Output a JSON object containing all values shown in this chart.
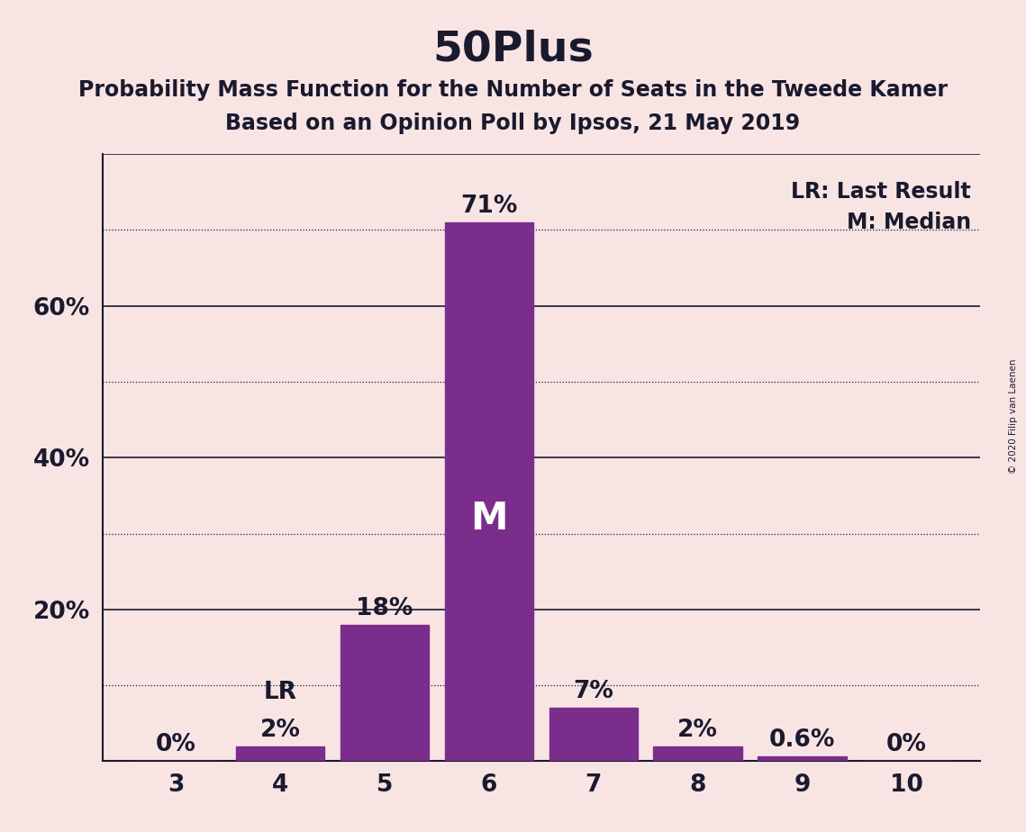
{
  "title": "50Plus",
  "subtitle1": "Probability Mass Function for the Number of Seats in the Tweede Kamer",
  "subtitle2": "Based on an Opinion Poll by Ipsos, 21 May 2019",
  "copyright": "© 2020 Filip van Laenen",
  "categories": [
    3,
    4,
    5,
    6,
    7,
    8,
    9,
    10
  ],
  "values": [
    0.0,
    2.0,
    18.0,
    71.0,
    7.0,
    2.0,
    0.6,
    0.0
  ],
  "labels": [
    "0%",
    "2%",
    "18%",
    "71%",
    "7%",
    "2%",
    "0.6%",
    "0%"
  ],
  "bar_color": "#7B2D8B",
  "background_color": "#F9E4E4",
  "solid_lines": [
    20,
    40,
    60,
    80
  ],
  "dotted_lines": [
    10,
    30,
    50,
    70
  ],
  "ylim": [
    0,
    80
  ],
  "last_result_seat": 4,
  "median_seat": 6,
  "legend_lr": "LR: Last Result",
  "legend_m": "M: Median",
  "label_lr": "LR",
  "label_m": "M",
  "title_fontsize": 34,
  "subtitle_fontsize": 17,
  "bar_label_fontsize": 19,
  "axis_fontsize": 19,
  "legend_fontsize": 17,
  "median_label_fontsize": 30,
  "ytick_display": [
    20,
    40,
    60
  ],
  "ytick_labels": {
    "20": "20%",
    "40": "40%",
    "60": "60%"
  }
}
